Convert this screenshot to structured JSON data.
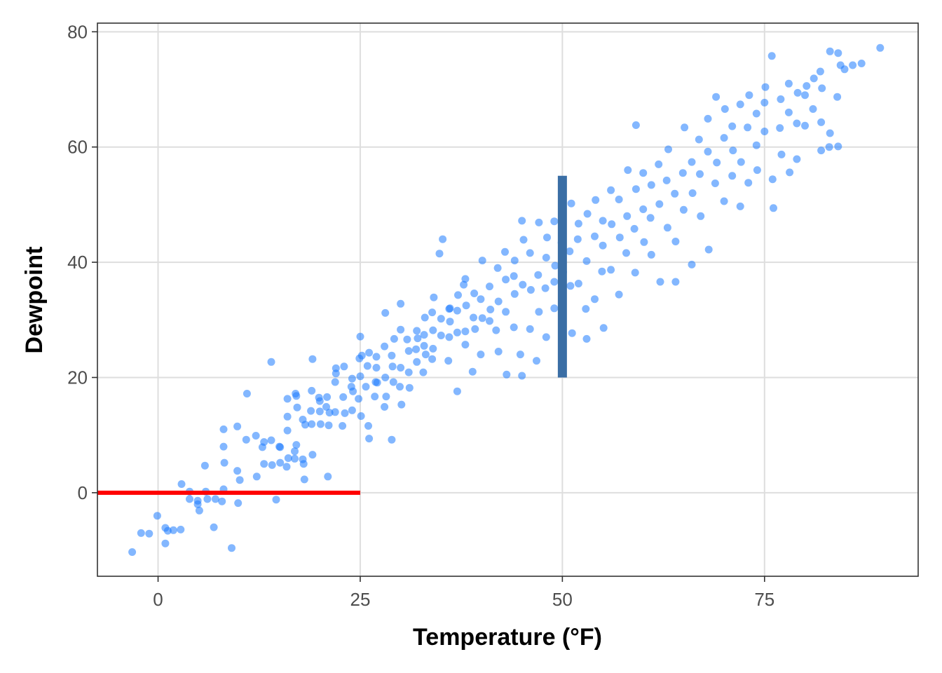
{
  "chart_data": {
    "type": "scatter",
    "xlabel": "Temperature (°F)",
    "ylabel": "Dewpoint",
    "xlim": [
      -7.5,
      94
    ],
    "ylim": [
      -14.5,
      81.5
    ],
    "x_ticks": [
      0,
      25,
      50,
      75
    ],
    "y_ticks": [
      0,
      20,
      40,
      60,
      80
    ],
    "grid": true,
    "legend": "none",
    "point_color": "#1E7BFF",
    "segments": [
      {
        "x": [
          -7.5,
          25
        ],
        "y": [
          0,
          0
        ],
        "color": "#FF0000"
      },
      {
        "x": [
          50,
          50
        ],
        "y": [
          20,
          55
        ],
        "color": "#3A6EA5"
      }
    ],
    "points": [
      [
        -3.2,
        -10.3
      ],
      [
        -2.1,
        -7.0
      ],
      [
        -1.1,
        -7.1
      ],
      [
        -0.1,
        -4.0
      ],
      [
        0.9,
        -6.1
      ],
      [
        0.9,
        -8.8
      ],
      [
        1.2,
        -6.6
      ],
      [
        1.9,
        -6.5
      ],
      [
        2.8,
        -6.4
      ],
      [
        2.9,
        1.5
      ],
      [
        3.9,
        0.2
      ],
      [
        3.9,
        -1.1
      ],
      [
        4.9,
        -1.4
      ],
      [
        4.9,
        -2.0
      ],
      [
        5.1,
        -3.1
      ],
      [
        5.8,
        4.7
      ],
      [
        5.9,
        0.2
      ],
      [
        6.1,
        -1.1
      ],
      [
        6.9,
        -6.0
      ],
      [
        7.1,
        -1.1
      ],
      [
        7.9,
        -1.5
      ],
      [
        8.1,
        0.6
      ],
      [
        8.2,
        5.2
      ],
      [
        8.1,
        8.0
      ],
      [
        8.1,
        11.0
      ],
      [
        9.1,
        -9.6
      ],
      [
        9.8,
        3.8
      ],
      [
        9.9,
        -1.8
      ],
      [
        9.8,
        11.5
      ],
      [
        10.1,
        2.2
      ],
      [
        10.9,
        9.2
      ],
      [
        11.0,
        17.2
      ],
      [
        12.1,
        9.9
      ],
      [
        12.2,
        2.8
      ],
      [
        12.9,
        7.9
      ],
      [
        13.1,
        5.0
      ],
      [
        13.1,
        8.8
      ],
      [
        14.0,
        9.1
      ],
      [
        14.1,
        4.8
      ],
      [
        14.0,
        22.7
      ],
      [
        14.6,
        -1.2
      ],
      [
        15.0,
        8.0
      ],
      [
        15.1,
        5.2
      ],
      [
        15.1,
        7.9
      ],
      [
        15.9,
        4.5
      ],
      [
        16.1,
        6.0
      ],
      [
        16.0,
        10.8
      ],
      [
        16.0,
        13.2
      ],
      [
        16.0,
        16.3
      ],
      [
        16.9,
        5.9
      ],
      [
        17.1,
        8.3
      ],
      [
        16.9,
        7.2
      ],
      [
        17.2,
        14.8
      ],
      [
        17.1,
        16.8
      ],
      [
        17.0,
        17.2
      ],
      [
        17.9,
        5.8
      ],
      [
        18.0,
        5.0
      ],
      [
        17.9,
        12.7
      ],
      [
        18.2,
        11.8
      ],
      [
        18.1,
        2.3
      ],
      [
        18.9,
        14.2
      ],
      [
        19.0,
        11.9
      ],
      [
        19.0,
        17.7
      ],
      [
        19.1,
        6.6
      ],
      [
        19.1,
        23.2
      ],
      [
        19.9,
        16.5
      ],
      [
        20.0,
        14.1
      ],
      [
        20.1,
        11.9
      ],
      [
        20.0,
        15.9
      ],
      [
        20.8,
        14.9
      ],
      [
        20.9,
        16.6
      ],
      [
        21.1,
        11.7
      ],
      [
        21.0,
        2.8
      ],
      [
        21.2,
        13.9
      ],
      [
        21.9,
        14.0
      ],
      [
        21.9,
        19.2
      ],
      [
        22.0,
        21.6
      ],
      [
        22.0,
        20.7
      ],
      [
        22.8,
        11.6
      ],
      [
        22.9,
        16.6
      ],
      [
        23.0,
        21.9
      ],
      [
        23.1,
        13.8
      ],
      [
        23.9,
        18.4
      ],
      [
        24.0,
        19.8
      ],
      [
        24.0,
        14.3
      ],
      [
        24.1,
        17.6
      ],
      [
        24.8,
        16.3
      ],
      [
        24.9,
        23.3
      ],
      [
        25.0,
        27.1
      ],
      [
        25.1,
        13.3
      ],
      [
        25.0,
        20.2
      ],
      [
        25.2,
        23.8
      ],
      [
        25.7,
        18.4
      ],
      [
        25.9,
        22.0
      ],
      [
        26.1,
        24.3
      ],
      [
        26.0,
        11.6
      ],
      [
        26.1,
        9.4
      ],
      [
        26.8,
        16.7
      ],
      [
        26.9,
        19.2
      ],
      [
        27.0,
        23.6
      ],
      [
        27.0,
        21.7
      ],
      [
        27.1,
        19.1
      ],
      [
        28.0,
        14.9
      ],
      [
        28.1,
        20.0
      ],
      [
        28.0,
        25.4
      ],
      [
        28.2,
        16.7
      ],
      [
        28.1,
        31.2
      ],
      [
        28.9,
        9.2
      ],
      [
        29.0,
        21.9
      ],
      [
        28.9,
        23.8
      ],
      [
        29.1,
        19.2
      ],
      [
        29.2,
        26.7
      ],
      [
        30.0,
        21.7
      ],
      [
        29.9,
        18.4
      ],
      [
        30.0,
        28.3
      ],
      [
        30.1,
        15.3
      ],
      [
        30.0,
        32.8
      ],
      [
        31.0,
        24.6
      ],
      [
        30.8,
        26.6
      ],
      [
        31.0,
        20.9
      ],
      [
        31.1,
        18.2
      ],
      [
        31.9,
        24.9
      ],
      [
        32.0,
        28.1
      ],
      [
        32.0,
        22.7
      ],
      [
        32.1,
        26.8
      ],
      [
        32.8,
        20.9
      ],
      [
        32.9,
        27.4
      ],
      [
        33.0,
        30.4
      ],
      [
        33.1,
        24.0
      ],
      [
        32.9,
        25.5
      ],
      [
        33.9,
        31.3
      ],
      [
        34.0,
        28.2
      ],
      [
        34.1,
        33.9
      ],
      [
        34.0,
        25.0
      ],
      [
        33.9,
        23.2
      ],
      [
        34.8,
        41.5
      ],
      [
        35.0,
        30.2
      ],
      [
        35.0,
        27.3
      ],
      [
        35.2,
        44.0
      ],
      [
        35.9,
        22.9
      ],
      [
        36.0,
        31.9
      ],
      [
        36.0,
        27.0
      ],
      [
        36.1,
        32.0
      ],
      [
        36.1,
        29.7
      ],
      [
        37.0,
        17.6
      ],
      [
        37.0,
        27.8
      ],
      [
        37.1,
        34.3
      ],
      [
        37.0,
        31.6
      ],
      [
        37.8,
        36.1
      ],
      [
        38.0,
        28.0
      ],
      [
        38.0,
        37.1
      ],
      [
        38.1,
        32.5
      ],
      [
        38.0,
        25.7
      ],
      [
        38.9,
        21.0
      ],
      [
        39.0,
        30.4
      ],
      [
        39.1,
        34.6
      ],
      [
        39.2,
        28.4
      ],
      [
        39.9,
        24.0
      ],
      [
        39.9,
        33.6
      ],
      [
        40.1,
        40.3
      ],
      [
        40.1,
        30.3
      ],
      [
        41.0,
        29.8
      ],
      [
        41.0,
        35.8
      ],
      [
        41.1,
        31.8
      ],
      [
        41.8,
        28.2
      ],
      [
        42.0,
        39.0
      ],
      [
        42.1,
        33.2
      ],
      [
        42.1,
        24.5
      ],
      [
        42.9,
        41.8
      ],
      [
        43.0,
        37.0
      ],
      [
        43.0,
        31.4
      ],
      [
        43.1,
        20.5
      ],
      [
        44.0,
        28.7
      ],
      [
        44.0,
        37.6
      ],
      [
        44.1,
        34.5
      ],
      [
        44.1,
        40.3
      ],
      [
        44.8,
        24.0
      ],
      [
        45.0,
        47.2
      ],
      [
        45.0,
        20.3
      ],
      [
        45.1,
        36.1
      ],
      [
        45.2,
        43.9
      ],
      [
        46.0,
        28.4
      ],
      [
        46.1,
        35.2
      ],
      [
        46.0,
        41.6
      ],
      [
        46.8,
        22.9
      ],
      [
        47.0,
        37.8
      ],
      [
        47.1,
        31.4
      ],
      [
        47.1,
        46.9
      ],
      [
        47.9,
        35.5
      ],
      [
        48.0,
        27.0
      ],
      [
        48.0,
        40.8
      ],
      [
        48.1,
        44.3
      ],
      [
        49.0,
        36.6
      ],
      [
        49.0,
        47.1
      ],
      [
        49.0,
        32.0
      ],
      [
        49.1,
        39.4
      ],
      [
        49.9,
        43.4
      ],
      [
        50.0,
        45.2
      ],
      [
        50.1,
        38.3
      ],
      [
        50.9,
        41.9
      ],
      [
        51.0,
        35.9
      ],
      [
        51.1,
        50.2
      ],
      [
        51.2,
        27.7
      ],
      [
        52.0,
        46.7
      ],
      [
        52.0,
        36.3
      ],
      [
        51.9,
        44.0
      ],
      [
        52.9,
        31.9
      ],
      [
        53.0,
        40.2
      ],
      [
        53.1,
        48.4
      ],
      [
        53.0,
        26.7
      ],
      [
        54.0,
        44.5
      ],
      [
        54.0,
        33.6
      ],
      [
        54.1,
        50.8
      ],
      [
        54.9,
        38.4
      ],
      [
        55.0,
        47.2
      ],
      [
        55.1,
        28.6
      ],
      [
        55.0,
        42.9
      ],
      [
        56.0,
        52.5
      ],
      [
        56.0,
        38.7
      ],
      [
        56.1,
        46.6
      ],
      [
        57.0,
        34.4
      ],
      [
        57.0,
        50.9
      ],
      [
        57.1,
        44.3
      ],
      [
        57.9,
        41.6
      ],
      [
        58.0,
        48.0
      ],
      [
        58.1,
        56.0
      ],
      [
        58.9,
        45.8
      ],
      [
        59.0,
        38.2
      ],
      [
        59.1,
        52.7
      ],
      [
        59.1,
        63.8
      ],
      [
        60.0,
        49.2
      ],
      [
        60.1,
        43.5
      ],
      [
        60.0,
        55.5
      ],
      [
        60.9,
        47.7
      ],
      [
        61.0,
        53.4
      ],
      [
        61.0,
        41.3
      ],
      [
        61.9,
        57.0
      ],
      [
        62.0,
        50.1
      ],
      [
        62.1,
        36.6
      ],
      [
        62.9,
        54.2
      ],
      [
        63.0,
        46.0
      ],
      [
        63.1,
        59.6
      ],
      [
        63.9,
        51.9
      ],
      [
        64.0,
        43.6
      ],
      [
        64.0,
        36.6
      ],
      [
        64.9,
        55.5
      ],
      [
        65.0,
        49.1
      ],
      [
        65.1,
        63.4
      ],
      [
        66.0,
        57.4
      ],
      [
        66.0,
        39.6
      ],
      [
        66.1,
        52.0
      ],
      [
        66.9,
        61.3
      ],
      [
        67.0,
        55.3
      ],
      [
        67.1,
        48.0
      ],
      [
        68.0,
        59.2
      ],
      [
        68.0,
        64.9
      ],
      [
        68.1,
        42.2
      ],
      [
        68.9,
        53.7
      ],
      [
        69.0,
        68.7
      ],
      [
        69.1,
        57.3
      ],
      [
        70.0,
        61.6
      ],
      [
        70.0,
        50.6
      ],
      [
        70.1,
        66.6
      ],
      [
        71.0,
        55.0
      ],
      [
        71.0,
        63.6
      ],
      [
        71.1,
        59.4
      ],
      [
        72.0,
        67.4
      ],
      [
        72.0,
        49.7
      ],
      [
        72.1,
        57.4
      ],
      [
        72.9,
        63.4
      ],
      [
        73.0,
        53.8
      ],
      [
        73.1,
        69.0
      ],
      [
        74.0,
        60.3
      ],
      [
        74.0,
        65.8
      ],
      [
        74.1,
        56.0
      ],
      [
        75.0,
        67.7
      ],
      [
        75.0,
        62.7
      ],
      [
        75.1,
        70.4
      ],
      [
        75.9,
        75.8
      ],
      [
        76.0,
        54.4
      ],
      [
        76.1,
        49.4
      ],
      [
        76.9,
        63.3
      ],
      [
        77.0,
        68.3
      ],
      [
        77.1,
        58.7
      ],
      [
        78.0,
        66.0
      ],
      [
        78.0,
        71.0
      ],
      [
        78.1,
        55.6
      ],
      [
        79.0,
        64.1
      ],
      [
        79.0,
        57.9
      ],
      [
        79.1,
        69.4
      ],
      [
        80.0,
        63.7
      ],
      [
        80.0,
        69.0
      ],
      [
        81.0,
        66.6
      ],
      [
        81.1,
        71.9
      ],
      [
        82.0,
        59.4
      ],
      [
        82.0,
        64.3
      ],
      [
        82.1,
        70.2
      ],
      [
        83.0,
        60.0
      ],
      [
        83.1,
        76.6
      ],
      [
        84.0,
        68.7
      ],
      [
        84.1,
        60.1
      ],
      [
        84.1,
        76.3
      ],
      [
        84.9,
        73.5
      ],
      [
        85.9,
        74.2
      ],
      [
        87.0,
        74.5
      ],
      [
        89.3,
        77.2
      ],
      [
        83.1,
        62.4
      ],
      [
        80.2,
        70.6
      ],
      [
        84.4,
        74.2
      ],
      [
        81.9,
        73.1
      ]
    ]
  }
}
